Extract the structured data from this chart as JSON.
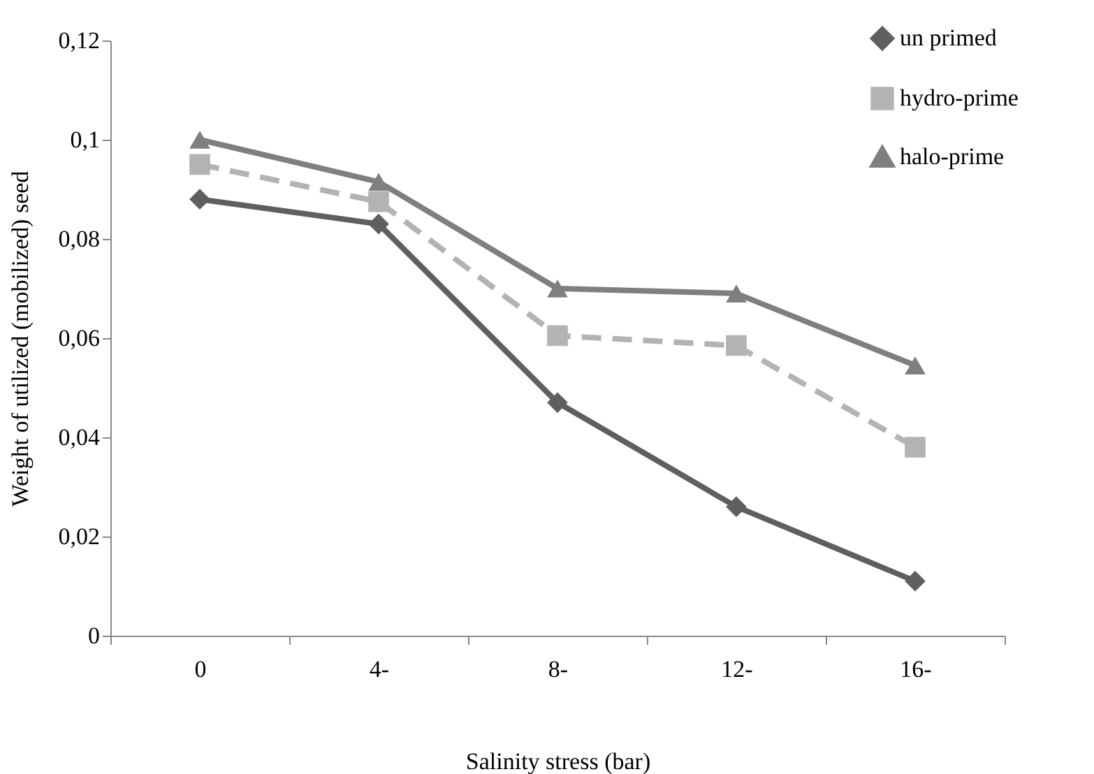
{
  "chart_data": {
    "type": "line",
    "xlabel": "Salinity stress (bar)",
    "ylabel": "Weight of utilized (mobilized) seed",
    "categories": [
      "0",
      "4-",
      "8-",
      "12-",
      "16-"
    ],
    "series": [
      {
        "name": "un primed",
        "color": "#5f5f5f",
        "marker": "diamond",
        "line_style": "solid",
        "values": [
          0.088,
          0.083,
          0.047,
          0.026,
          0.011
        ]
      },
      {
        "name": "hydro-prime",
        "color": "#b3b3b3",
        "marker": "square",
        "line_style": "dashed",
        "values": [
          0.095,
          0.0875,
          0.0605,
          0.0585,
          0.038
        ]
      },
      {
        "name": "halo-prime",
        "color": "#7f7f7f",
        "marker": "triangle",
        "line_style": "solid",
        "values": [
          0.1,
          0.0915,
          0.07,
          0.069,
          0.0545
        ]
      }
    ],
    "ylim": [
      0,
      0.12
    ],
    "yticks": [
      {
        "value": 0,
        "label": "0"
      },
      {
        "value": 0.02,
        "label": "0,02"
      },
      {
        "value": 0.04,
        "label": "0,04"
      },
      {
        "value": 0.06,
        "label": "0,06"
      },
      {
        "value": 0.08,
        "label": "0,08"
      },
      {
        "value": 0.1,
        "label": "0,1"
      },
      {
        "value": 0.12,
        "label": "0,12"
      }
    ],
    "grid": false,
    "legend": "top right"
  }
}
